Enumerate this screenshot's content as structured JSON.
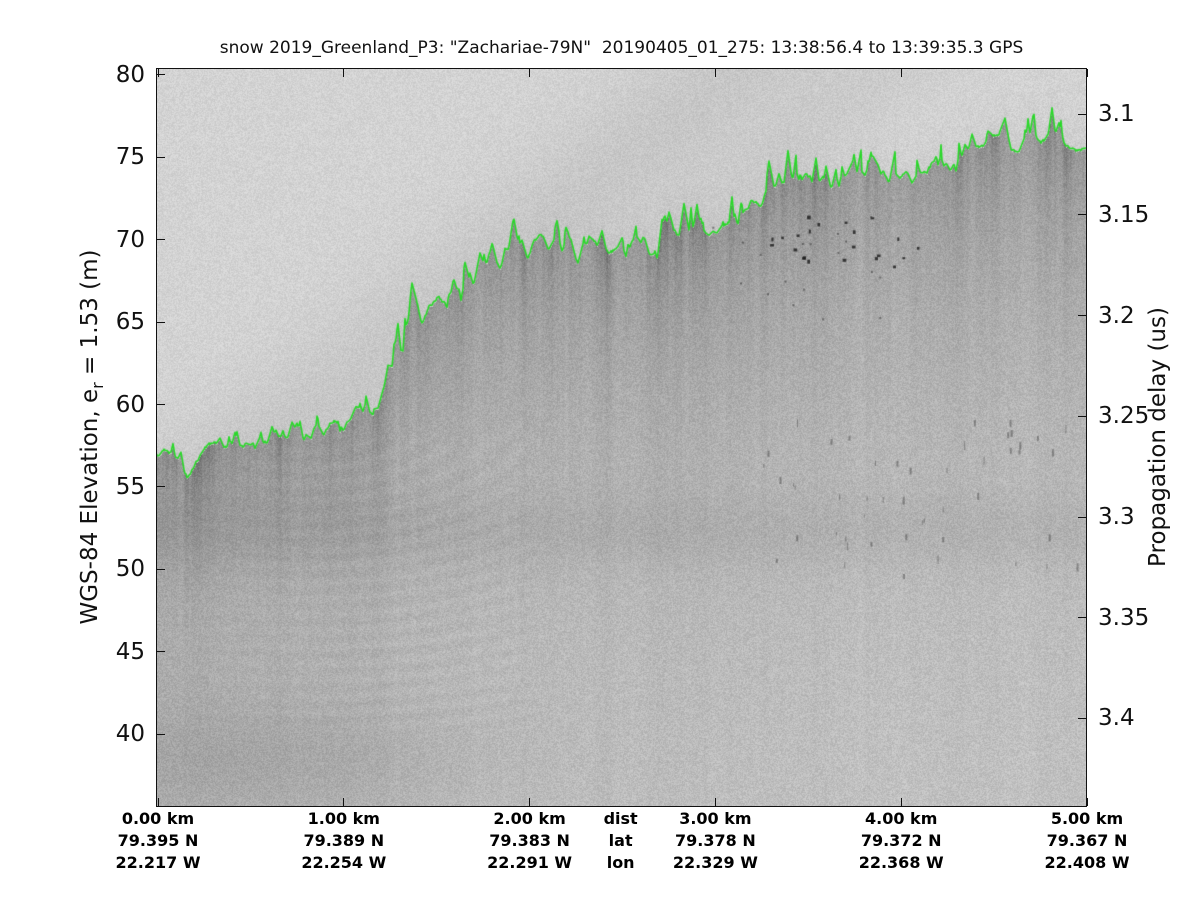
{
  "figure": {
    "background": "#ffffff"
  },
  "chart_data": {
    "type": "heatmap",
    "title": "snow 2019_Greenland_P3: \"Zachariae-79N\"  20190405_01_275: 13:38:56.4 to 13:39:35.3 GPS",
    "legend": "none",
    "grid": "off",
    "colormap_hint": "grayscale radar echogram, light=weak return, dark=strong return",
    "left_axis": {
      "label_prefix": "WGS-84 Elevation, e",
      "label_sub": "r",
      "label_suffix": " = 1.53 (m)",
      "ticks": [
        80,
        75,
        70,
        65,
        60,
        55,
        50,
        45,
        40
      ],
      "range": [
        35.6,
        80.4
      ]
    },
    "right_axis": {
      "label": "Propagation delay (us)",
      "ticks": [
        3.1,
        3.15,
        3.2,
        3.25,
        3.3,
        3.35,
        3.4
      ],
      "tick_labels": [
        "3.1",
        "3.15",
        "3.2",
        "3.25",
        "3.3",
        "3.35",
        "3.4"
      ],
      "range": [
        3.077,
        3.444
      ]
    },
    "x_axis": {
      "range_km": [
        0,
        5
      ],
      "row_labels": [
        "dist",
        "lat",
        "lon"
      ],
      "row_labels_km": 2.49,
      "columns": [
        {
          "km": 0,
          "dist": "0.00 km",
          "lat": "79.395 N",
          "lon": "22.217 W"
        },
        {
          "km": 1,
          "dist": "1.00 km",
          "lat": "79.389 N",
          "lon": "22.254 W"
        },
        {
          "km": 2,
          "dist": "2.00 km",
          "lat": "79.383 N",
          "lon": "22.291 W"
        },
        {
          "km": 3,
          "dist": "3.00 km",
          "lat": "79.378 N",
          "lon": "22.329 W"
        },
        {
          "km": 4,
          "dist": "4.00 km",
          "lat": "79.372 N",
          "lon": "22.368 W"
        },
        {
          "km": 5,
          "dist": "5.00 km",
          "lat": "79.367 N",
          "lon": "22.408 W"
        }
      ]
    },
    "surface_trace": {
      "name": "picked-snow-surface",
      "color": "#29d829",
      "units": {
        "x": "km",
        "y": "m WGS-84 elevation"
      },
      "points": [
        [
          0.0,
          56.9
        ],
        [
          0.03,
          57.3
        ],
        [
          0.08,
          57.0
        ],
        [
          0.12,
          56.5
        ],
        [
          0.16,
          55.5
        ],
        [
          0.2,
          56.4
        ],
        [
          0.25,
          57.3
        ],
        [
          0.3,
          57.5
        ],
        [
          0.36,
          57.2
        ],
        [
          0.41,
          57.6
        ],
        [
          0.46,
          57.4
        ],
        [
          0.52,
          57.7
        ],
        [
          0.57,
          57.4
        ],
        [
          0.62,
          57.8
        ],
        [
          0.68,
          57.6
        ],
        [
          0.73,
          58.2
        ],
        [
          0.79,
          57.9
        ],
        [
          0.84,
          58.6
        ],
        [
          0.89,
          58.4
        ],
        [
          0.95,
          59.1
        ],
        [
          1.0,
          58.6
        ],
        [
          1.06,
          59.4
        ],
        [
          1.11,
          59.8
        ],
        [
          1.16,
          59.6
        ],
        [
          1.22,
          60.9
        ],
        [
          1.26,
          62.1
        ],
        [
          1.29,
          64.5
        ],
        [
          1.32,
          63.0
        ],
        [
          1.36,
          65.8
        ],
        [
          1.39,
          66.4
        ],
        [
          1.42,
          64.8
        ],
        [
          1.46,
          65.8
        ],
        [
          1.51,
          66.7
        ],
        [
          1.55,
          66.1
        ],
        [
          1.59,
          67.6
        ],
        [
          1.63,
          66.7
        ],
        [
          1.67,
          67.1
        ],
        [
          1.71,
          67.4
        ],
        [
          1.76,
          68.1
        ],
        [
          1.8,
          68.9
        ],
        [
          1.84,
          68.1
        ],
        [
          1.87,
          68.7
        ],
        [
          1.91,
          70.0
        ],
        [
          1.95,
          69.1
        ],
        [
          1.99,
          68.7
        ],
        [
          2.02,
          69.7
        ],
        [
          2.06,
          70.2
        ],
        [
          2.1,
          69.5
        ],
        [
          2.14,
          69.9
        ],
        [
          2.18,
          69.4
        ],
        [
          2.21,
          69.8
        ],
        [
          2.26,
          68.4
        ],
        [
          2.3,
          69.3
        ],
        [
          2.34,
          69.9
        ],
        [
          2.38,
          69.6
        ],
        [
          2.43,
          69.3
        ],
        [
          2.47,
          69.4
        ],
        [
          2.5,
          69.0
        ],
        [
          2.54,
          69.7
        ],
        [
          2.58,
          70.0
        ],
        [
          2.61,
          70.2
        ],
        [
          2.65,
          69.1
        ],
        [
          2.69,
          68.8
        ],
        [
          2.72,
          70.0
        ],
        [
          2.76,
          70.3
        ],
        [
          2.81,
          70.2
        ],
        [
          2.85,
          70.5
        ],
        [
          2.9,
          70.6
        ],
        [
          2.95,
          70.3
        ],
        [
          3.0,
          70.4
        ],
        [
          3.04,
          70.7
        ],
        [
          3.08,
          71.0
        ],
        [
          3.12,
          70.6
        ],
        [
          3.16,
          71.8
        ],
        [
          3.2,
          72.5
        ],
        [
          3.24,
          72.2
        ],
        [
          3.28,
          72.9
        ],
        [
          3.33,
          73.3
        ],
        [
          3.37,
          73.4
        ],
        [
          3.41,
          73.6
        ],
        [
          3.46,
          74.0
        ],
        [
          3.5,
          73.6
        ],
        [
          3.54,
          73.3
        ],
        [
          3.58,
          73.0
        ],
        [
          3.63,
          73.4
        ],
        [
          3.67,
          73.6
        ],
        [
          3.71,
          73.8
        ],
        [
          3.76,
          73.7
        ],
        [
          3.8,
          74.0
        ],
        [
          3.84,
          74.2
        ],
        [
          3.89,
          74.4
        ],
        [
          3.93,
          73.6
        ],
        [
          3.97,
          73.8
        ],
        [
          4.02,
          73.9
        ],
        [
          4.06,
          73.7
        ],
        [
          4.1,
          73.6
        ],
        [
          4.14,
          74.2
        ],
        [
          4.19,
          75.0
        ],
        [
          4.23,
          74.5
        ],
        [
          4.27,
          74.2
        ],
        [
          4.32,
          74.8
        ],
        [
          4.36,
          75.3
        ],
        [
          4.4,
          75.6
        ],
        [
          4.45,
          75.7
        ],
        [
          4.49,
          76.2
        ],
        [
          4.53,
          76.3
        ],
        [
          4.58,
          75.5
        ],
        [
          4.62,
          75.3
        ],
        [
          4.66,
          75.9
        ],
        [
          4.7,
          76.4
        ],
        [
          4.75,
          76.1
        ],
        [
          4.79,
          76.2
        ],
        [
          4.83,
          76.1
        ],
        [
          4.88,
          75.8
        ],
        [
          4.92,
          75.6
        ],
        [
          4.96,
          75.5
        ],
        [
          5.0,
          75.7
        ]
      ]
    }
  }
}
